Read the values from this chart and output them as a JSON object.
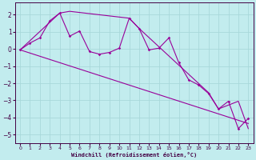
{
  "xlabel": "Windchill (Refroidissement éolien,°C)",
  "background_color": "#c2ecee",
  "grid_color": "#a8d8da",
  "line_color": "#990099",
  "xlim": [
    -0.5,
    23.5
  ],
  "ylim": [
    -5.5,
    2.7
  ],
  "x_ticks": [
    0,
    1,
    2,
    3,
    4,
    5,
    6,
    7,
    8,
    9,
    10,
    11,
    12,
    13,
    14,
    15,
    16,
    17,
    18,
    19,
    20,
    21,
    22,
    23
  ],
  "y_ticks": [
    -5,
    -4,
    -3,
    -2,
    -1,
    0,
    1,
    2
  ],
  "main_x": [
    0,
    1,
    2,
    3,
    4,
    5,
    6,
    7,
    8,
    9,
    10,
    11,
    12,
    13,
    14,
    15,
    16,
    17,
    18,
    19,
    20,
    21,
    22,
    23
  ],
  "main_y": [
    -0.05,
    0.35,
    0.65,
    1.65,
    2.1,
    0.75,
    1.05,
    -0.15,
    -0.3,
    -0.2,
    0.05,
    1.8,
    1.2,
    -0.05,
    0.05,
    0.65,
    -0.8,
    -1.8,
    -2.1,
    -2.6,
    -3.5,
    -3.05,
    -4.65,
    -4.05
  ],
  "trend_x": [
    0,
    23
  ],
  "trend_y": [
    -0.05,
    -4.35
  ],
  "env_x": [
    0,
    4,
    5,
    11,
    12,
    19,
    20,
    22,
    23
  ],
  "env_y": [
    -0.05,
    2.1,
    2.2,
    1.8,
    1.2,
    -2.55,
    -3.5,
    -3.05,
    -4.65
  ]
}
